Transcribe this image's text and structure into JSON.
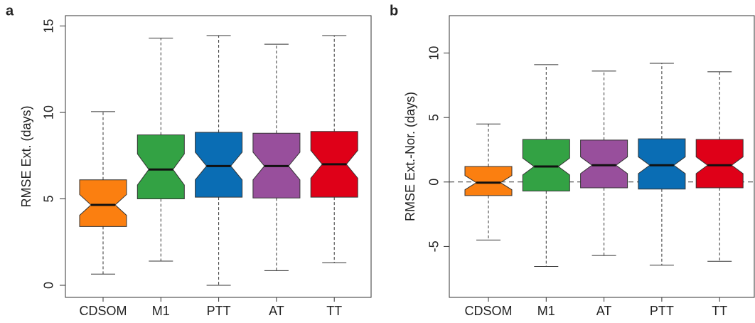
{
  "chart_data": [
    {
      "type": "boxplot",
      "panel": "a",
      "ylabel": "RMSE Ext. (days)",
      "categories": [
        "CDSOM",
        "M1",
        "PTT",
        "AT",
        "TT"
      ],
      "ylim": [
        -0.7,
        15.6
      ],
      "yticks": [
        0,
        5,
        10,
        15
      ],
      "boxes": [
        {
          "low": 0.65,
          "q1": 3.4,
          "median": 4.65,
          "q3": 6.1,
          "high": 10.05,
          "notch": [
            4.05,
            5.25
          ],
          "color": "#fb7f10"
        },
        {
          "low": 1.4,
          "q1": 5.0,
          "median": 6.7,
          "q3": 8.7,
          "high": 14.3,
          "notch": [
            5.8,
            7.6
          ],
          "color": "#33a244"
        },
        {
          "low": 0,
          "q1": 5.1,
          "median": 6.9,
          "q3": 8.85,
          "high": 14.45,
          "notch": [
            6.1,
            7.7
          ],
          "color": "#0a6db4"
        },
        {
          "low": 0.85,
          "q1": 5.05,
          "median": 6.9,
          "q3": 8.8,
          "high": 13.95,
          "notch": [
            6.1,
            7.7
          ],
          "color": "#984f9c"
        },
        {
          "low": 1.3,
          "q1": 5.1,
          "median": 7.0,
          "q3": 8.9,
          "high": 14.45,
          "notch": [
            6.2,
            7.8
          ],
          "color": "#df0018"
        }
      ]
    },
    {
      "type": "boxplot",
      "panel": "b",
      "ylabel": "RMSE Ext.-Nor. (days)",
      "categories": [
        "CDSOM",
        "M1",
        "AT",
        "PTT",
        "TT"
      ],
      "ylim": [
        -8.95,
        12.9
      ],
      "yticks": [
        -5,
        0,
        5,
        10
      ],
      "hline": 0,
      "boxes": [
        {
          "low": -4.5,
          "q1": -1.05,
          "median": -0.05,
          "q3": 1.2,
          "high": 4.5,
          "notch": [
            -0.6,
            0.5
          ],
          "color": "#fb7f10"
        },
        {
          "low": -6.55,
          "q1": -0.7,
          "median": 1.2,
          "q3": 3.3,
          "high": 9.1,
          "notch": [
            0.55,
            1.85
          ],
          "color": "#33a244"
        },
        {
          "low": -5.7,
          "q1": -0.45,
          "median": 1.3,
          "q3": 3.25,
          "high": 8.6,
          "notch": [
            0.65,
            1.95
          ],
          "color": "#984f9c"
        },
        {
          "low": -6.45,
          "q1": -0.55,
          "median": 1.3,
          "q3": 3.35,
          "high": 9.2,
          "notch": [
            0.65,
            1.95
          ],
          "color": "#0a6db4"
        },
        {
          "low": -6.15,
          "q1": -0.45,
          "median": 1.3,
          "q3": 3.3,
          "high": 8.55,
          "notch": [
            0.65,
            1.95
          ],
          "color": "#df0018"
        }
      ]
    }
  ]
}
